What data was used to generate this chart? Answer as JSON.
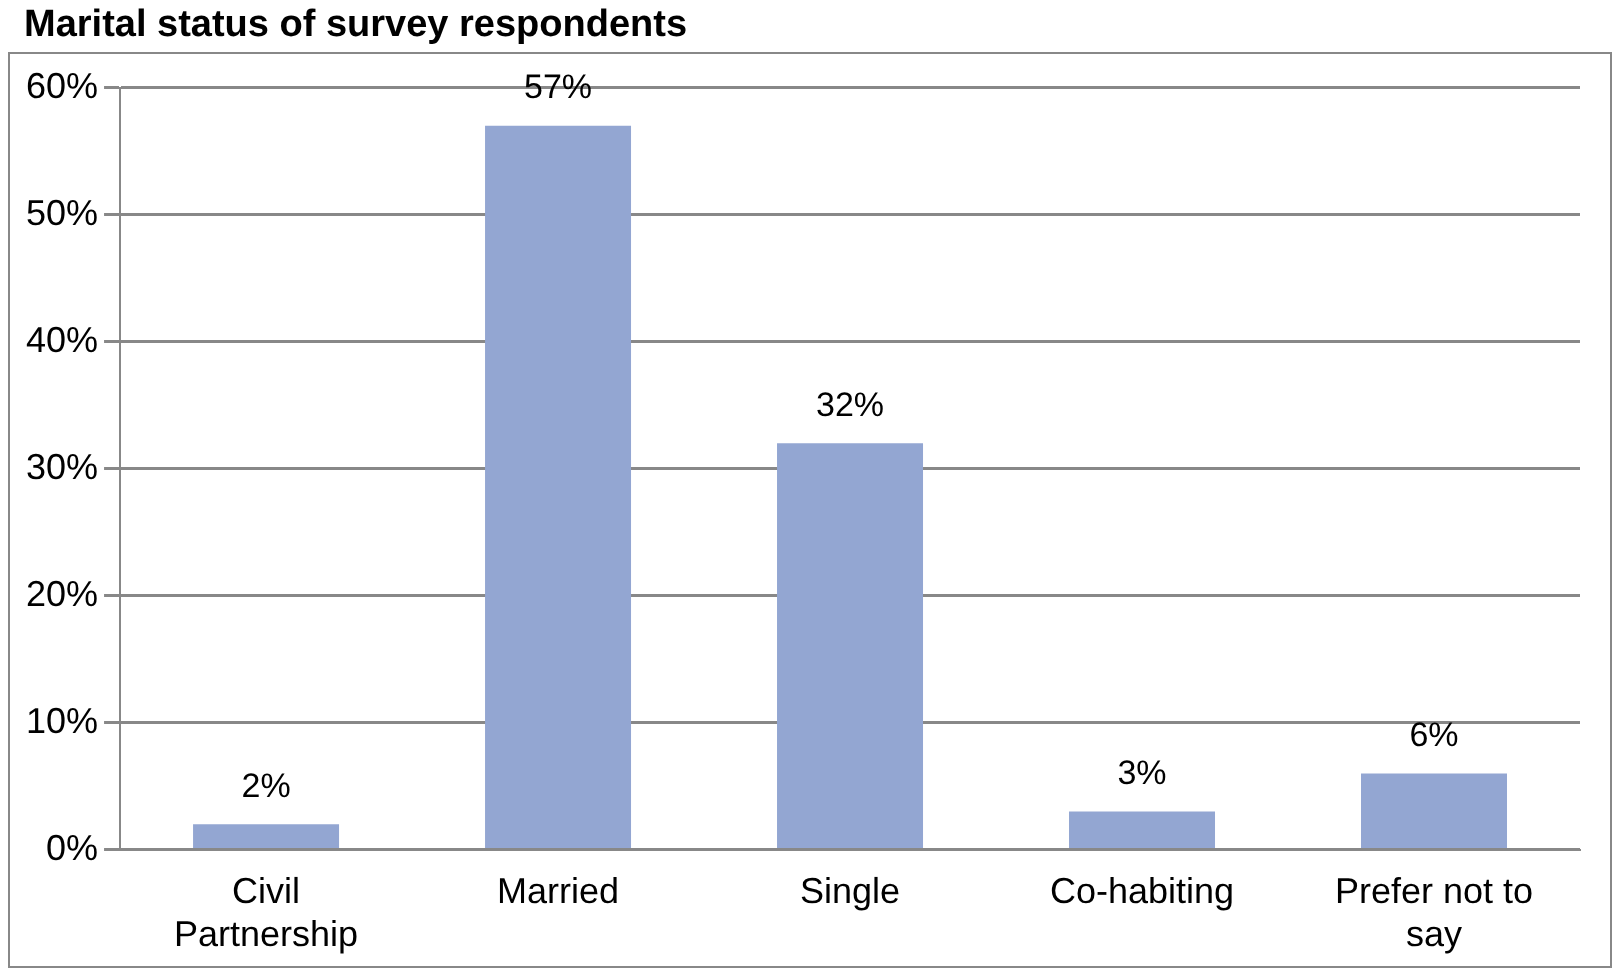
{
  "chart_data": {
    "type": "bar",
    "title": "Marital status of survey respondents",
    "categories": [
      "Civil Partnership",
      "Married",
      "Single",
      "Co-habiting",
      "Prefer not to say"
    ],
    "values": [
      2,
      57,
      32,
      3,
      6
    ],
    "value_labels": [
      "2%",
      "57%",
      "32%",
      "3%",
      "6%"
    ],
    "color": "#93a6d2",
    "ylim": [
      0,
      60
    ],
    "yticks": [
      {
        "value": 0,
        "label": "0%"
      },
      {
        "value": 10,
        "label": "10%"
      },
      {
        "value": 20,
        "label": "20%"
      },
      {
        "value": 30,
        "label": "30%"
      },
      {
        "value": 40,
        "label": "40%"
      },
      {
        "value": 50,
        "label": "50%"
      },
      {
        "value": 60,
        "label": "60%"
      }
    ],
    "grid": "y",
    "legend": false
  }
}
